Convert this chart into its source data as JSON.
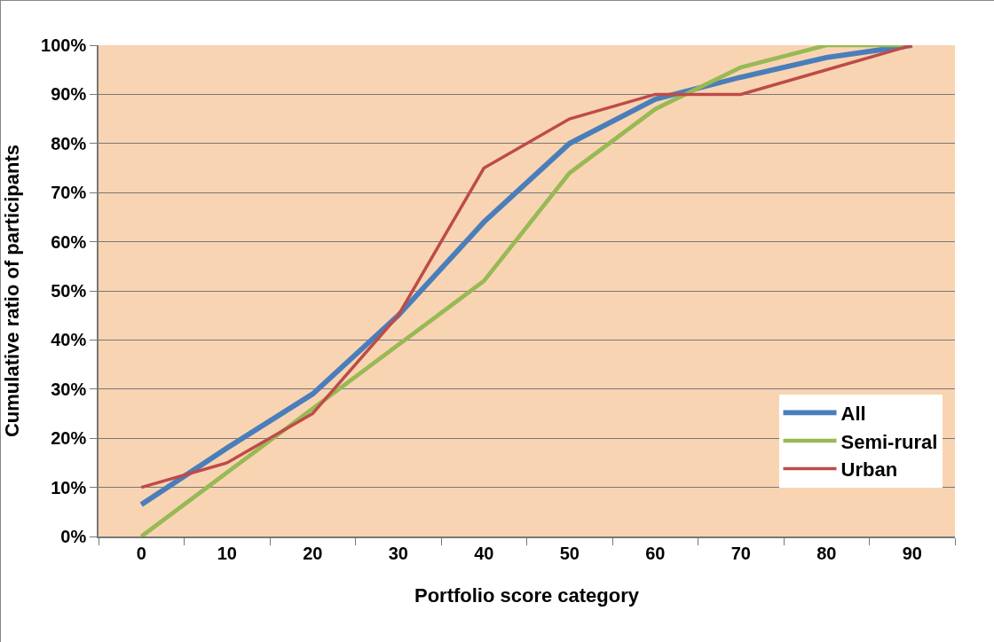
{
  "chart_data": {
    "type": "line",
    "xlabel": "Portfolio score category",
    "ylabel": "Cumulative ratio of participants",
    "categories": [
      "0",
      "10",
      "20",
      "30",
      "40",
      "50",
      "60",
      "70",
      "80",
      "90"
    ],
    "series": [
      {
        "name": "All",
        "color": "#4a7ebb",
        "values": [
          6.5,
          18,
          29,
          45,
          64,
          80,
          89,
          93.5,
          97.5,
          100
        ]
      },
      {
        "name": "Semi-rural",
        "color": "#98b954",
        "values": [
          0,
          13,
          26,
          39,
          52,
          74,
          87,
          95.5,
          100,
          100
        ]
      },
      {
        "name": "Urban",
        "color": "#be4b48",
        "values": [
          10,
          15,
          25,
          45,
          75,
          85,
          90,
          90,
          95,
          100
        ]
      }
    ],
    "ylim": [
      0,
      100
    ],
    "yticks": [
      {
        "value": 0,
        "label": "0%"
      },
      {
        "value": 10,
        "label": "10%"
      },
      {
        "value": 20,
        "label": "20%"
      },
      {
        "value": 30,
        "label": "30%"
      },
      {
        "value": 40,
        "label": "40%"
      },
      {
        "value": 50,
        "label": "50%"
      },
      {
        "value": 60,
        "label": "60%"
      },
      {
        "value": 70,
        "label": "70%"
      },
      {
        "value": 80,
        "label": "80%"
      },
      {
        "value": 90,
        "label": "90%"
      },
      {
        "value": 100,
        "label": "100%"
      }
    ],
    "grid": "y",
    "legend": "bottom right",
    "marker": "none",
    "line_style": "solid"
  }
}
